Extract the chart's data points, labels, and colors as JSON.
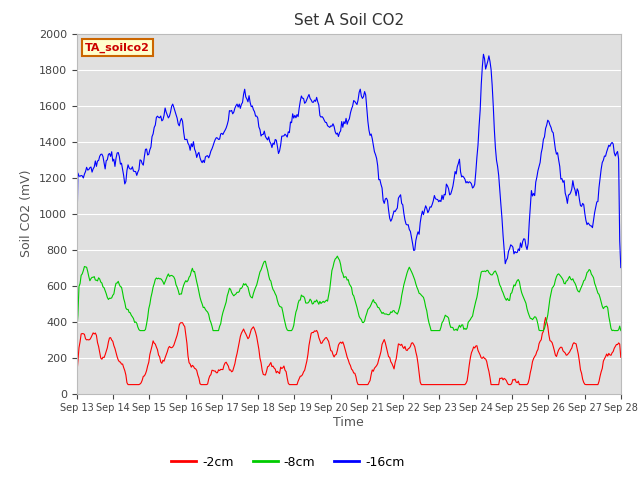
{
  "title": "Set A Soil CO2",
  "ylabel": "Soil CO2 (mV)",
  "xlabel": "Time",
  "ylim": [
    0,
    2000
  ],
  "bg_color": "#e0e0e0",
  "legend_label": "TA_soilco2",
  "series_labels": [
    "-2cm",
    "-8cm",
    "-16cm"
  ],
  "series_colors": [
    "#ff0000",
    "#00cc00",
    "#0000ff"
  ],
  "xtick_labels": [
    "Sep 13",
    "Sep 14",
    "Sep 15",
    "Sep 16",
    "Sep 17",
    "Sep 18",
    "Sep 19",
    "Sep 20",
    "Sep 21",
    "Sep 22",
    "Sep 23",
    "Sep 24",
    "Sep 25",
    "Sep 26",
    "Sep 27",
    "Sep 28"
  ],
  "n_points": 500,
  "grid_color": "#ffffff",
  "figsize": [
    6.4,
    4.8
  ],
  "dpi": 100
}
